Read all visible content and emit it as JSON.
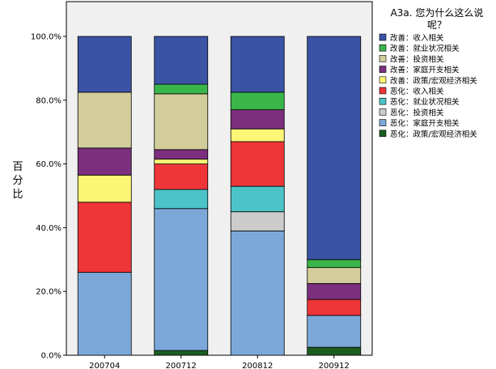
{
  "chart_data": {
    "type": "bar",
    "stacked": true,
    "categories": [
      "200704",
      "200712",
      "200812",
      "200912"
    ],
    "ylabel": "百分比",
    "ylim": [
      0,
      100
    ],
    "yticks": [
      "0.0%",
      "20.0%",
      "40.0%",
      "60.0%",
      "80.0%",
      "100.0%"
    ],
    "grid": false,
    "legend_position": "right",
    "legend_title": "A3a. 您为什么这么说呢？",
    "series": [
      {
        "name": "恶化：政策/宏观经济相关",
        "color": "#1b5e20",
        "values": [
          0,
          1.5,
          0,
          2.5
        ]
      },
      {
        "name": "恶化：家庭开支相关",
        "color": "#7ba8d9",
        "values": [
          26,
          44.5,
          39,
          10
        ]
      },
      {
        "name": "恶化：投资相关",
        "color": "#cccccc",
        "values": [
          0,
          0,
          6,
          0
        ]
      },
      {
        "name": "恶化：就业状况相关",
        "color": "#4cc3c6",
        "values": [
          0,
          6,
          8,
          0
        ]
      },
      {
        "name": "恶化：收入相关",
        "color": "#ee3538",
        "values": [
          22,
          8,
          14,
          5
        ]
      },
      {
        "name": "改善：政策/宏观经济相关",
        "color": "#fdf575",
        "values": [
          8.5,
          1.5,
          4,
          0
        ]
      },
      {
        "name": "改善：家庭开支相关",
        "color": "#7b2f7e",
        "values": [
          8.5,
          3,
          6,
          5
        ]
      },
      {
        "name": "改善：投资相关",
        "color": "#d2cd9b",
        "values": [
          17.5,
          17.5,
          0,
          5
        ]
      },
      {
        "name": "改善：就业状况相关",
        "color": "#3ab54a",
        "values": [
          0,
          3,
          5.5,
          2.5
        ]
      },
      {
        "name": "改善：收入相关",
        "color": "#3a53a4",
        "values": [
          17.5,
          15,
          17.5,
          70
        ]
      }
    ],
    "legend_order": [
      "改善：收入相关",
      "改善：就业状况相关",
      "改善：投资相关",
      "改善：家庭开支相关",
      "改善：政策/宏观经济相关",
      "恶化：收入相关",
      "恶化：就业状况相关",
      "恶化：投资相关",
      "恶化：家庭开支相关",
      "恶化：政策/宏观经济相关"
    ]
  }
}
